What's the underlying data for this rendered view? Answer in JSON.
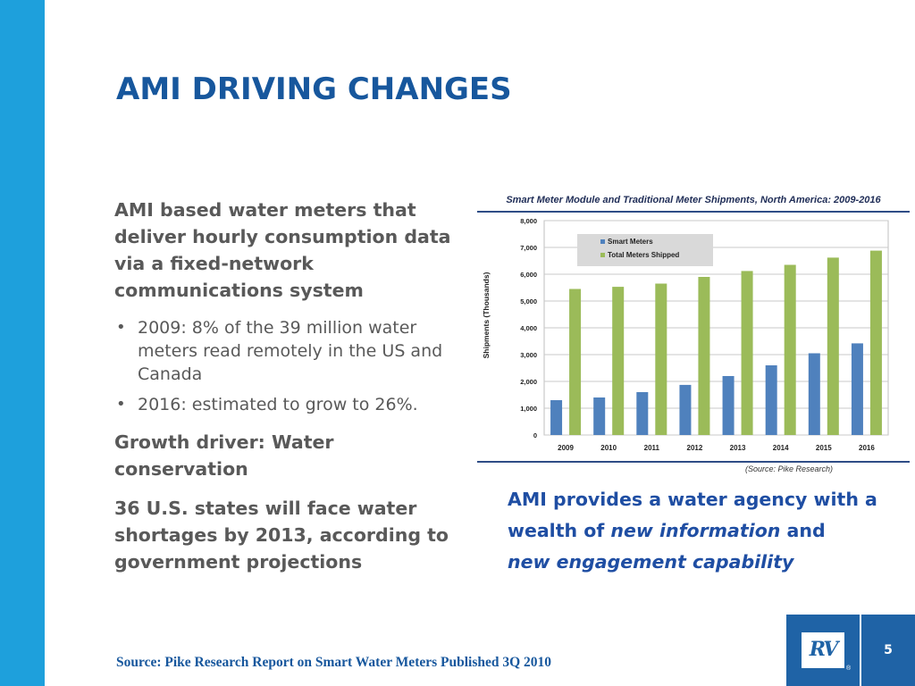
{
  "slide": {
    "title": "AMI DRIVING CHANGES",
    "page_number": "5"
  },
  "left": {
    "intro": "AMI based water meters that deliver hourly consumption data via a fixed-network communications system",
    "bullets": [
      "2009: 8% of the 39 million water meters read remotely in the US and Canada",
      "2016:  estimated to grow to 26%."
    ],
    "growth": "Growth driver:  Water conservation",
    "states": "36 U.S. states will face water shortages by 2013, according to government projections"
  },
  "callout": {
    "part1": "AMI provides a water agency with a wealth of ",
    "emph1": "new information",
    "part2": " and ",
    "emph2": "new engagement capability"
  },
  "footer": {
    "source": "Source: Pike Research Report on Smart Water Meters Published 3Q 2010",
    "logo_text": "RV",
    "logo_reg": "®"
  },
  "chart_source": "(Source: Pike Research)",
  "colors": {
    "left_bar": "#1ea0dc",
    "title": "#17579d",
    "smart_meters": "#4f81bd",
    "total_shipped": "#9bbb59",
    "callout": "#1f4ea3"
  },
  "chart_data": {
    "type": "bar",
    "title": "Smart Meter Module and Traditional Meter Shipments, North America:  2009-2016",
    "xlabel": "",
    "ylabel": "Shipments (Thousands)",
    "categories": [
      "2009",
      "2010",
      "2011",
      "2012",
      "2013",
      "2014",
      "2015",
      "2016"
    ],
    "series": [
      {
        "name": "Smart Meters",
        "color": "#4f81bd",
        "values": [
          1300,
          1400,
          1600,
          1870,
          2200,
          2600,
          3050,
          3420
        ]
      },
      {
        "name": "Total Meters Shipped",
        "color": "#9bbb59",
        "values": [
          5450,
          5530,
          5650,
          5900,
          6120,
          6350,
          6620,
          6880
        ]
      }
    ],
    "ylim": [
      0,
      8000
    ],
    "yticks": [
      "0",
      "1,000",
      "2,000",
      "3,000",
      "4,000",
      "5,000",
      "6,000",
      "7,000",
      "8,000"
    ],
    "grid": true,
    "legend": "top-left"
  }
}
